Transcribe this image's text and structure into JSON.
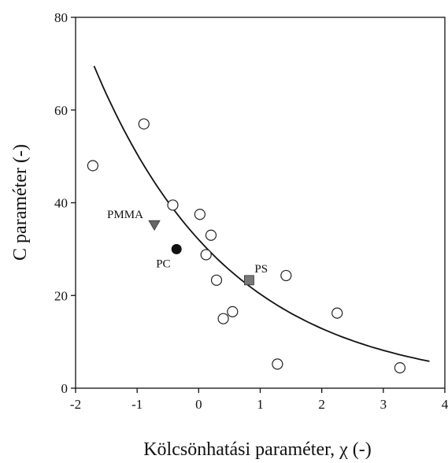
{
  "chart_data": {
    "type": "scatter",
    "xlabel": "Kölcsönhatási paraméter, χ (-)",
    "ylabel": "C paraméter (-)",
    "xlim": [
      -2,
      4
    ],
    "ylim": [
      0,
      80
    ],
    "xticks": [
      -2,
      -1,
      0,
      1,
      2,
      3,
      4
    ],
    "yticks": [
      0,
      20,
      40,
      60,
      80
    ],
    "xtick_labels": [
      "-2",
      "-1",
      "0",
      "1",
      "2",
      "3",
      "4"
    ],
    "ytick_labels": [
      "0",
      "20",
      "40",
      "60",
      "80"
    ],
    "grid": false,
    "series": [
      {
        "marker": "open-circle",
        "points": [
          {
            "x": -1.72,
            "y": 48
          },
          {
            "x": -0.89,
            "y": 57
          },
          {
            "x": -0.42,
            "y": 39.5
          },
          {
            "x": 0.02,
            "y": 37.5
          },
          {
            "x": 0.2,
            "y": 33
          },
          {
            "x": 0.12,
            "y": 28.8
          },
          {
            "x": 0.29,
            "y": 23.3
          },
          {
            "x": 0.4,
            "y": 15
          },
          {
            "x": 0.55,
            "y": 16.5
          },
          {
            "x": 1.42,
            "y": 24.3
          },
          {
            "x": 1.28,
            "y": 5.2
          },
          {
            "x": 2.25,
            "y": 16.2
          },
          {
            "x": 3.27,
            "y": 4.4
          }
        ]
      },
      {
        "name": "PMMA",
        "marker": "triangle-down",
        "color": "#666666",
        "points": [
          {
            "x": -0.72,
            "y": 35.3
          }
        ]
      },
      {
        "name": "PC",
        "marker": "filled-circle",
        "color": "#111111",
        "points": [
          {
            "x": -0.36,
            "y": 30
          }
        ]
      },
      {
        "name": "PS",
        "marker": "square",
        "color": "#777777",
        "points": [
          {
            "x": 0.82,
            "y": 23.3
          }
        ]
      }
    ],
    "fit_curve": {
      "type": "exponential",
      "points": [
        {
          "x": -1.7,
          "y": 69.5
        },
        {
          "x": -1.0,
          "y": 52.5
        },
        {
          "x": 0.0,
          "y": 36.0
        },
        {
          "x": 1.0,
          "y": 23.5
        },
        {
          "x": 2.0,
          "y": 14.8
        },
        {
          "x": 3.0,
          "y": 8.7
        },
        {
          "x": 3.75,
          "y": 5.8
        }
      ]
    }
  }
}
